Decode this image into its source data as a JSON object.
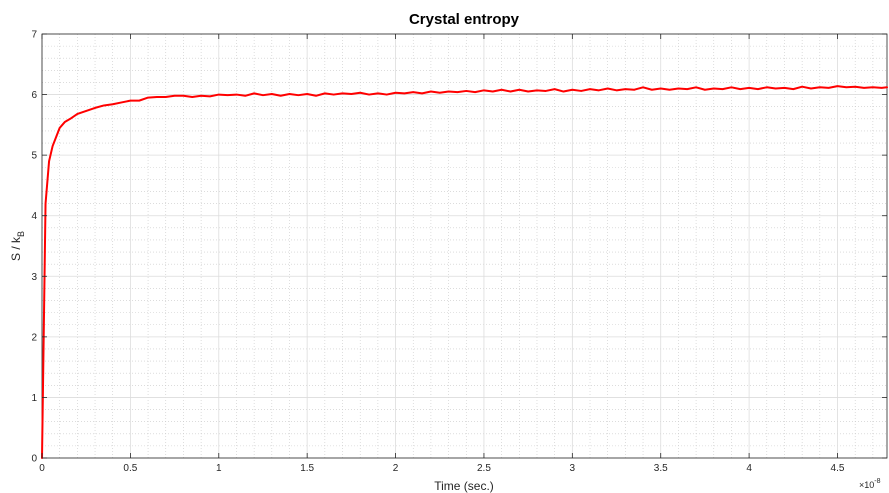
{
  "chart_data": {
    "type": "line",
    "title": "Crystal entropy",
    "xlabel": "Time (sec.)",
    "ylabel": {
      "main": "S / k",
      "subscript": "B"
    },
    "x_exponent_label": {
      "base": "×10",
      "exponent": "-8"
    },
    "x_scale_factor": 1e-08,
    "xlim": [
      0,
      4.78
    ],
    "ylim": [
      0,
      7
    ],
    "xticks": [
      0,
      0.5,
      1,
      1.5,
      2,
      2.5,
      3,
      3.5,
      4,
      4.5
    ],
    "xtick_labels": [
      "0",
      "0.5",
      "1",
      "1.5",
      "2",
      "2.5",
      "3",
      "3.5",
      "4",
      "4.5"
    ],
    "yticks": [
      0,
      1,
      2,
      3,
      4,
      5,
      6,
      7
    ],
    "ytick_labels": [
      "0",
      "1",
      "2",
      "3",
      "4",
      "5",
      "6",
      "7"
    ],
    "grid": true,
    "minor_grid": true,
    "colors": {
      "line": "#ff0000",
      "major_grid": "#dcdcdc",
      "minor_grid": "#c8c8c8",
      "axes": "#262626"
    },
    "series": [
      {
        "x": [
          0,
          0.02,
          0.04,
          0.06,
          0.08,
          0.1,
          0.13,
          0.16,
          0.2,
          0.25,
          0.3,
          0.35,
          0.4,
          0.45,
          0.5,
          0.55,
          0.6,
          0.65,
          0.7,
          0.75,
          0.8,
          0.85,
          0.9,
          0.95,
          1.0,
          1.05,
          1.1,
          1.15,
          1.2,
          1.25,
          1.3,
          1.35,
          1.4,
          1.45,
          1.5,
          1.55,
          1.6,
          1.65,
          1.7,
          1.75,
          1.8,
          1.85,
          1.9,
          1.95,
          2.0,
          2.05,
          2.1,
          2.15,
          2.2,
          2.25,
          2.3,
          2.35,
          2.4,
          2.45,
          2.5,
          2.55,
          2.6,
          2.65,
          2.7,
          2.75,
          2.8,
          2.85,
          2.9,
          2.95,
          3.0,
          3.05,
          3.1,
          3.15,
          3.2,
          3.25,
          3.3,
          3.35,
          3.4,
          3.45,
          3.5,
          3.55,
          3.6,
          3.65,
          3.7,
          3.75,
          3.8,
          3.85,
          3.9,
          3.95,
          4.0,
          4.05,
          4.1,
          4.15,
          4.2,
          4.25,
          4.3,
          4.35,
          4.4,
          4.45,
          4.5,
          4.55,
          4.6,
          4.65,
          4.7,
          4.75,
          4.78
        ],
        "values": [
          0,
          4.2,
          4.9,
          5.15,
          5.3,
          5.45,
          5.55,
          5.6,
          5.68,
          5.73,
          5.78,
          5.82,
          5.84,
          5.87,
          5.9,
          5.9,
          5.95,
          5.96,
          5.96,
          5.98,
          5.98,
          5.96,
          5.98,
          5.97,
          6.0,
          5.99,
          6.0,
          5.98,
          6.02,
          5.99,
          6.01,
          5.98,
          6.01,
          5.99,
          6.01,
          5.98,
          6.02,
          6.0,
          6.02,
          6.01,
          6.03,
          6.0,
          6.02,
          6.0,
          6.03,
          6.02,
          6.04,
          6.02,
          6.05,
          6.03,
          6.05,
          6.04,
          6.06,
          6.04,
          6.07,
          6.05,
          6.08,
          6.05,
          6.08,
          6.05,
          6.07,
          6.06,
          6.09,
          6.05,
          6.08,
          6.06,
          6.09,
          6.07,
          6.1,
          6.07,
          6.09,
          6.08,
          6.12,
          6.08,
          6.1,
          6.08,
          6.1,
          6.09,
          6.12,
          6.08,
          6.1,
          6.09,
          6.12,
          6.09,
          6.11,
          6.09,
          6.12,
          6.1,
          6.11,
          6.09,
          6.13,
          6.1,
          6.12,
          6.11,
          6.14,
          6.12,
          6.13,
          6.11,
          6.12,
          6.11,
          6.12
        ]
      }
    ]
  }
}
